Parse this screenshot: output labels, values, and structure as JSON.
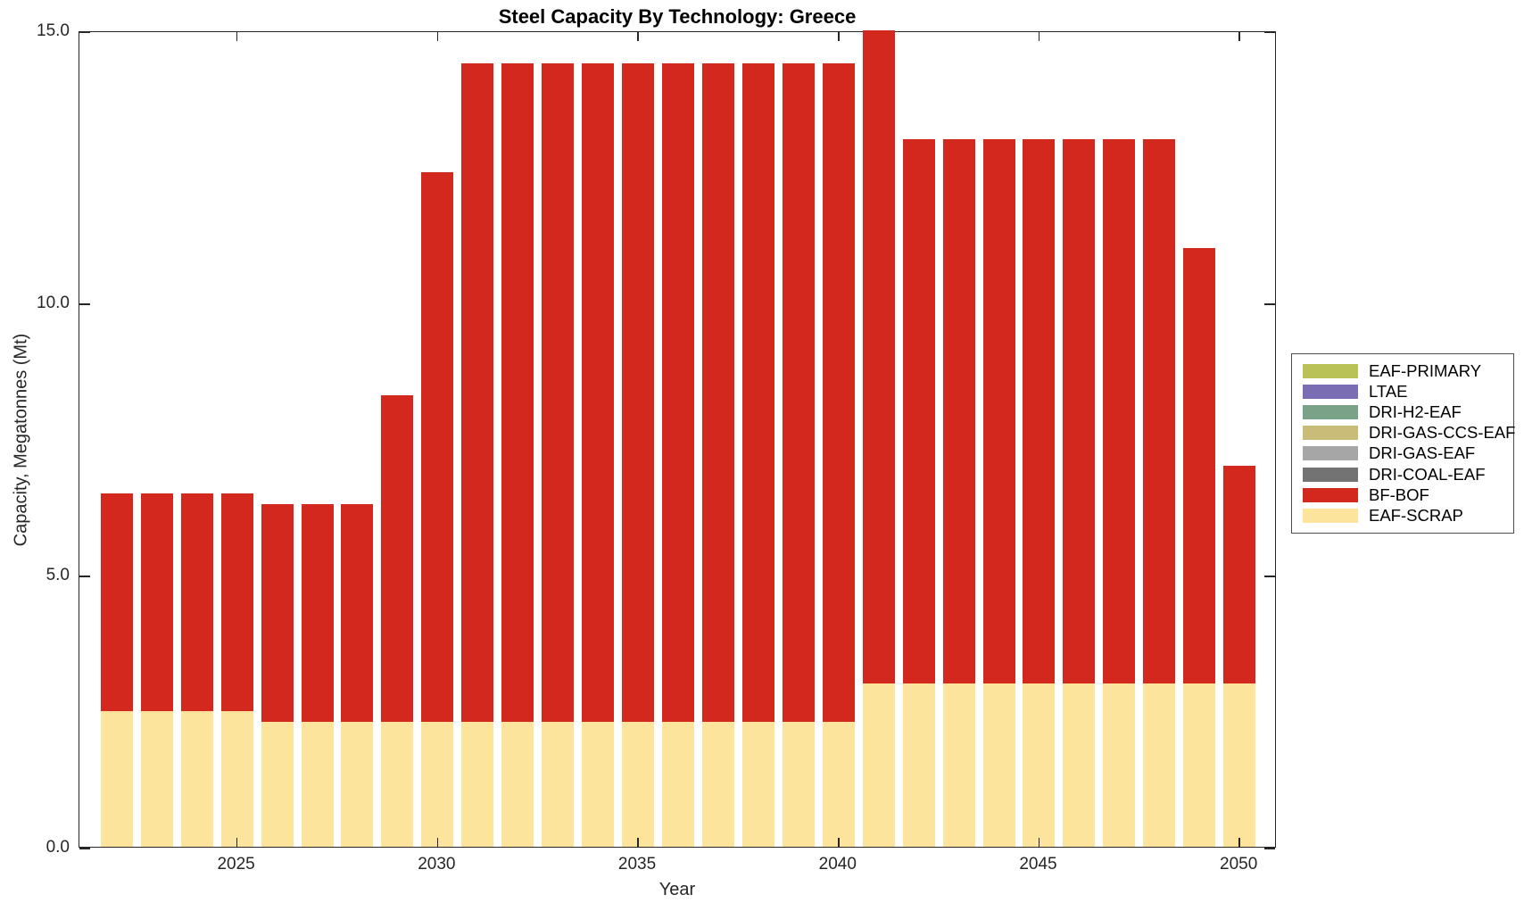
{
  "chart_data": {
    "type": "bar",
    "stacked": true,
    "title": "Steel Capacity By Technology: Greece",
    "xlabel": "Year",
    "ylabel": "Capacity, Megatonnes (Mt)",
    "x": [
      2022,
      2023,
      2024,
      2025,
      2026,
      2027,
      2028,
      2029,
      2030,
      2031,
      2032,
      2033,
      2034,
      2035,
      2036,
      2037,
      2038,
      2039,
      2040,
      2041,
      2042,
      2043,
      2044,
      2045,
      2046,
      2047,
      2048,
      2049,
      2050
    ],
    "xlim": [
      2021.07,
      2050.93
    ],
    "ylim": [
      0,
      15
    ],
    "xticks": [
      2025,
      2030,
      2035,
      2040,
      2045,
      2050
    ],
    "xtick_labels": [
      "2025",
      "2030",
      "2035",
      "2040",
      "2045",
      "2050"
    ],
    "yticks": [
      0,
      5,
      10,
      15
    ],
    "ytick_labels": [
      "0.0",
      "5.0",
      "10.0",
      "15.0"
    ],
    "grid": false,
    "legend_position": "right-outside",
    "legend_order": "reverse-of-stack",
    "series": [
      {
        "name": "EAF-SCRAP",
        "color": "#fde49c",
        "values": [
          2.5,
          2.5,
          2.5,
          2.5,
          2.3,
          2.3,
          2.3,
          2.3,
          2.3,
          2.3,
          2.3,
          2.3,
          2.3,
          2.3,
          2.3,
          2.3,
          2.3,
          2.3,
          2.3,
          3.0,
          3.0,
          3.0,
          3.0,
          3.0,
          3.0,
          3.0,
          3.0,
          3.0,
          3.0
        ]
      },
      {
        "name": "BF-BOF",
        "color": "#d2281e",
        "values": [
          4.0,
          4.0,
          4.0,
          4.0,
          4.0,
          4.0,
          4.0,
          6.0,
          10.1,
          12.1,
          12.1,
          12.1,
          12.1,
          12.1,
          12.1,
          12.1,
          12.1,
          12.1,
          12.1,
          12.0,
          10.0,
          10.0,
          10.0,
          10.0,
          10.0,
          10.0,
          10.0,
          8.0,
          4.0
        ]
      },
      {
        "name": "DRI-COAL-EAF",
        "color": "#737373",
        "values": [
          0,
          0,
          0,
          0,
          0,
          0,
          0,
          0,
          0,
          0,
          0,
          0,
          0,
          0,
          0,
          0,
          0,
          0,
          0,
          0,
          0,
          0,
          0,
          0,
          0,
          0,
          0,
          0,
          0
        ]
      },
      {
        "name": "DRI-GAS-EAF",
        "color": "#a6a6a6",
        "values": [
          0,
          0,
          0,
          0,
          0,
          0,
          0,
          0,
          0,
          0,
          0,
          0,
          0,
          0,
          0,
          0,
          0,
          0,
          0,
          0,
          0,
          0,
          0,
          0,
          0,
          0,
          0,
          0,
          0
        ]
      },
      {
        "name": "DRI-GAS-CCS-EAF",
        "color": "#c9bc79",
        "values": [
          0,
          0,
          0,
          0,
          0,
          0,
          0,
          0,
          0,
          0,
          0,
          0,
          0,
          0,
          0,
          0,
          0,
          0,
          0,
          0,
          0,
          0,
          0,
          0,
          0,
          0,
          0,
          0,
          0
        ]
      },
      {
        "name": "DRI-H2-EAF",
        "color": "#7aa289",
        "values": [
          0,
          0,
          0,
          0,
          0,
          0,
          0,
          0,
          0,
          0,
          0,
          0,
          0,
          0,
          0,
          0,
          0,
          0,
          0,
          0,
          0,
          0,
          0,
          0,
          0,
          0,
          0,
          0,
          0
        ]
      },
      {
        "name": "LTAE",
        "color": "#7a6db4",
        "values": [
          0,
          0,
          0,
          0,
          0,
          0,
          0,
          0,
          0,
          0,
          0,
          0,
          0,
          0,
          0,
          0,
          0,
          0,
          0,
          0,
          0,
          0,
          0,
          0,
          0,
          0,
          0,
          0,
          0
        ]
      },
      {
        "name": "EAF-PRIMARY",
        "color": "#b9c257",
        "values": [
          0,
          0,
          0,
          0,
          0,
          0,
          0,
          0,
          0,
          0,
          0,
          0,
          0,
          0,
          0,
          0,
          0,
          0,
          0,
          0,
          0,
          0,
          0,
          0,
          0,
          0,
          0,
          0,
          0
        ]
      }
    ]
  }
}
